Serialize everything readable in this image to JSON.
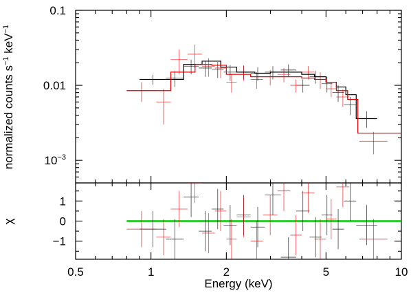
{
  "chart_data": [
    {
      "type": "line",
      "panel": "spectrum",
      "xscale": "log",
      "yscale": "log",
      "xlim": [
        0.5,
        10
      ],
      "ylim": [
        0.0005,
        0.1
      ],
      "ylabel_parts": [
        "normalized counts s",
        "−1",
        " keV",
        "−1"
      ],
      "yticks": [
        {
          "value": 0.1,
          "label": "0.1"
        },
        {
          "value": 0.01,
          "label": "0.01"
        },
        {
          "value": 0.001,
          "label_base": "10",
          "label_exp": "−3"
        }
      ],
      "series": [
        {
          "color": "#000000",
          "data": [
            [
              0.9,
              1.15,
              0.012,
              0.0018
            ],
            [
              1.15,
              1.35,
              0.0125,
              0.003
            ],
            [
              1.35,
              1.55,
              0.018,
              0.004
            ],
            [
              1.55,
              1.75,
              0.017,
              0.004
            ],
            [
              1.75,
              1.95,
              0.0165,
              0.004
            ],
            [
              1.95,
              2.2,
              0.015,
              0.0035
            ],
            [
              2.2,
              2.5,
              0.015,
              0.003
            ],
            [
              2.5,
              2.85,
              0.0145,
              0.003
            ],
            [
              2.85,
              3.3,
              0.015,
              0.003
            ],
            [
              3.3,
              3.8,
              0.016,
              0.003
            ],
            [
              3.8,
              4.3,
              0.01,
              0.002
            ],
            [
              4.3,
              4.8,
              0.013,
              0.0025
            ],
            [
              4.8,
              5.3,
              0.0105,
              0.0025
            ],
            [
              5.3,
              5.9,
              0.008,
              0.002
            ],
            [
              5.9,
              6.6,
              0.0055,
              0.0015
            ],
            [
              6.6,
              8.0,
              0.0036,
              0.0009
            ]
          ],
          "model": [
            [
              0.9,
              0.012
            ],
            [
              1.35,
              0.019
            ],
            [
              1.6,
              0.021
            ],
            [
              1.9,
              0.0175
            ],
            [
              2.2,
              0.015
            ],
            [
              2.6,
              0.0145
            ],
            [
              3.0,
              0.015
            ],
            [
              4.0,
              0.014
            ],
            [
              4.5,
              0.013
            ],
            [
              5.0,
              0.011
            ],
            [
              5.5,
              0.0095
            ],
            [
              6.0,
              0.0075
            ],
            [
              6.6,
              0.0036
            ],
            [
              8.0,
              0.0036
            ]
          ]
        },
        {
          "color": "#e00000",
          "data": [
            [
              0.8,
              1.05,
              0.0085,
              0.0025
            ],
            [
              1.05,
              1.2,
              0.006,
              0.003
            ],
            [
              1.2,
              1.4,
              0.022,
              0.008
            ],
            [
              1.4,
              1.6,
              0.026,
              0.009
            ],
            [
              1.6,
              1.8,
              0.018,
              0.005
            ],
            [
              1.8,
              2.0,
              0.017,
              0.0045
            ],
            [
              2.0,
              2.2,
              0.011,
              0.003
            ],
            [
              2.2,
              2.5,
              0.015,
              0.0035
            ],
            [
              2.5,
              2.8,
              0.012,
              0.003
            ],
            [
              2.8,
              3.2,
              0.013,
              0.003
            ],
            [
              3.2,
              3.6,
              0.014,
              0.003
            ],
            [
              3.6,
              4.0,
              0.01,
              0.002
            ],
            [
              4.0,
              4.5,
              0.015,
              0.003
            ],
            [
              4.5,
              5.0,
              0.012,
              0.003
            ],
            [
              5.0,
              5.5,
              0.009,
              0.002
            ],
            [
              5.5,
              6.2,
              0.007,
              0.0018
            ],
            [
              6.8,
              8.8,
              0.0018,
              0.0006
            ]
          ],
          "model": [
            [
              0.8,
              0.0085
            ],
            [
              1.2,
              0.015
            ],
            [
              1.5,
              0.019
            ],
            [
              1.75,
              0.0185
            ],
            [
              2.0,
              0.014
            ],
            [
              2.5,
              0.013
            ],
            [
              3.0,
              0.013
            ],
            [
              4.0,
              0.0125
            ],
            [
              4.5,
              0.012
            ],
            [
              5.0,
              0.011
            ],
            [
              5.5,
              0.0085
            ],
            [
              6.1,
              0.0065
            ],
            [
              6.7,
              0.0023
            ],
            [
              10.0,
              0.0023
            ]
          ]
        }
      ]
    },
    {
      "type": "scatter",
      "panel": "residuals",
      "xscale": "log",
      "xlim": [
        0.5,
        10
      ],
      "ylim": [
        -1.9,
        1.9
      ],
      "xlabel": "Energy (keV)",
      "ylabel": "χ",
      "yticks": [
        {
          "value": 1,
          "label": "1"
        },
        {
          "value": 0,
          "label": "0"
        },
        {
          "value": -1,
          "label": "−1"
        }
      ],
      "xticks": [
        {
          "value": 0.5,
          "label": "0.5"
        },
        {
          "value": 1,
          "label": "1"
        },
        {
          "value": 2,
          "label": "2"
        },
        {
          "value": 5,
          "label": "5"
        },
        {
          "value": 10,
          "label": "10"
        }
      ],
      "zero_line": {
        "value": 0,
        "color": "#00cc00",
        "from": 0.8,
        "to": 10
      },
      "series": [
        {
          "color": "#000000",
          "data": [
            [
              0.9,
              1.15,
              -0.4,
              0.9
            ],
            [
              1.15,
              1.35,
              -0.9,
              1.0
            ],
            [
              1.35,
              1.55,
              1.2,
              1.0
            ],
            [
              1.55,
              1.75,
              -0.5,
              1.0
            ],
            [
              1.75,
              1.95,
              0.6,
              1.0
            ],
            [
              1.95,
              2.2,
              -0.2,
              1.0
            ],
            [
              2.2,
              2.5,
              0.3,
              1.0
            ],
            [
              2.5,
              2.85,
              -0.3,
              1.0
            ],
            [
              2.85,
              3.3,
              1.3,
              1.0
            ],
            [
              3.3,
              3.8,
              -1.8,
              1.0
            ],
            [
              3.8,
              4.3,
              0.5,
              1.0
            ],
            [
              4.3,
              4.8,
              -0.8,
              1.0
            ],
            [
              4.8,
              5.3,
              0.3,
              1.0
            ],
            [
              5.3,
              5.9,
              -0.4,
              1.0
            ],
            [
              5.9,
              6.6,
              1.0,
              1.0
            ],
            [
              6.6,
              8.0,
              -0.2,
              1.0
            ]
          ]
        },
        {
          "color": "#e00000",
          "data": [
            [
              0.8,
              1.05,
              -0.4,
              0.9
            ],
            [
              1.05,
              1.2,
              -0.8,
              0.9
            ],
            [
              1.2,
              1.4,
              0.6,
              0.9
            ],
            [
              1.4,
              1.6,
              1.9,
              1.0
            ],
            [
              1.6,
              1.8,
              -0.6,
              1.0
            ],
            [
              1.8,
              2.0,
              0.5,
              1.0
            ],
            [
              2.0,
              2.2,
              -0.9,
              1.0
            ],
            [
              2.2,
              2.5,
              0.2,
              1.0
            ],
            [
              2.5,
              2.8,
              -1.0,
              1.0
            ],
            [
              2.8,
              3.2,
              0.3,
              1.0
            ],
            [
              3.2,
              3.6,
              1.5,
              1.0
            ],
            [
              3.6,
              4.0,
              -0.7,
              1.0
            ],
            [
              4.0,
              4.5,
              1.4,
              1.0
            ],
            [
              4.5,
              5.0,
              -0.9,
              1.0
            ],
            [
              5.0,
              5.5,
              0.1,
              1.0
            ],
            [
              5.5,
              6.2,
              1.7,
              1.0
            ],
            [
              6.8,
              8.8,
              -0.9,
              1.0
            ]
          ]
        }
      ]
    }
  ]
}
